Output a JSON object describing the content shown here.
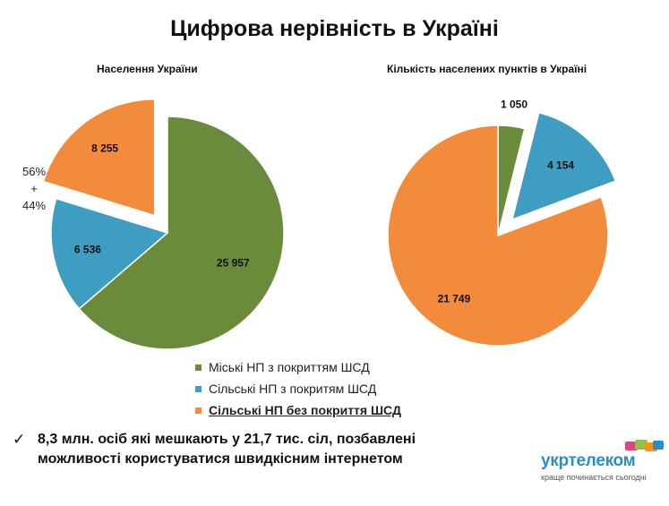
{
  "title": "Цифрова нерівність в Україні",
  "chart_data": [
    {
      "type": "pie",
      "title": "Населення України",
      "categories": [
        "Міські НП з покриттям ШСД",
        "Сільські НП з покриттям ШСД",
        "Сільські НП без  покриття ШСД"
      ],
      "values": [
        25957,
        6536,
        8255
      ],
      "labels": [
        "25 957",
        "6 536",
        "8 255"
      ],
      "colors": [
        "#6a8b39",
        "#3e9ec2",
        "#f28c3c"
      ],
      "exploded": "Сільські НП без  покриття ШСД"
    },
    {
      "type": "pie",
      "title": "Кількість населених пунктів в Україні",
      "categories": [
        "Міські НП з покриттям ШСД",
        "Сільські НП з покриттям ШСД",
        "Сільські НП без  покриття ШСД"
      ],
      "values": [
        1050,
        4154,
        21749
      ],
      "labels": [
        "1 050",
        "4 154",
        "21 749"
      ],
      "colors": [
        "#6a8b39",
        "#3e9ec2",
        "#f28c3c"
      ],
      "exploded": "Сільські НП з покриттям ШСД"
    }
  ],
  "ratio_note": {
    "top": "56%",
    "sep": "+",
    "bottom": "44%"
  },
  "legend": [
    {
      "label": "Міські НП з покриттям ШСД",
      "color": "#6a8b39"
    },
    {
      "label": "Сільські НП з покритям ШСД",
      "color": "#3e9ec2"
    },
    {
      "label": "Сільські НП без  покриття ШСД",
      "color": "#f28c3c"
    }
  ],
  "takeaway": {
    "check": "✓",
    "text": "8,3 млн. осіб які мешкають у 21,7 тис. сіл, позбавлені можливості користуватися швидкісним інтернетом"
  },
  "logo": {
    "word": "укртелеком",
    "tagline": "краще починається сьогодні"
  }
}
